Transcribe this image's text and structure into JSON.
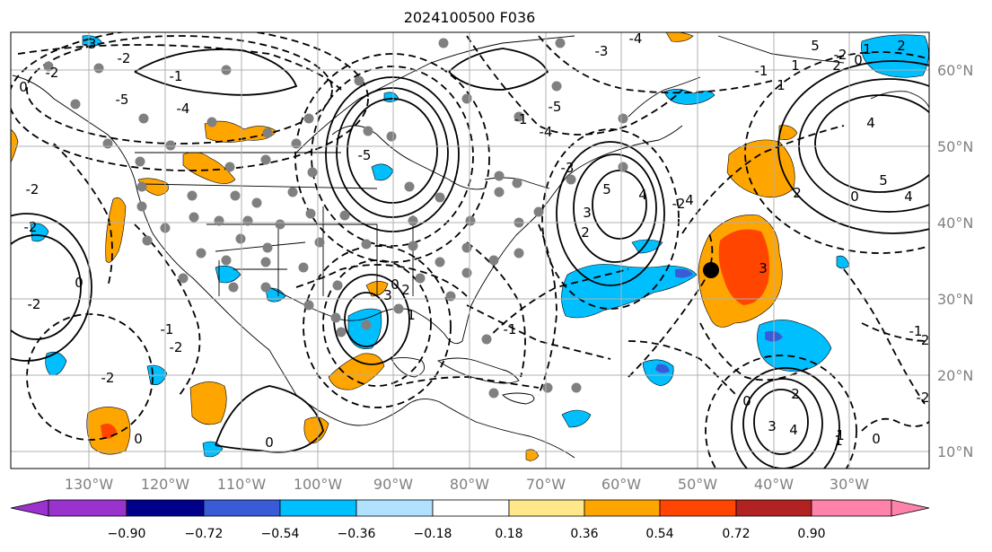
{
  "title": "2024100500 F036",
  "map": {
    "longitude_labels": [
      "130°W",
      "120°W",
      "110°W",
      "100°W",
      "90°W",
      "80°W",
      "70°W",
      "60°W",
      "50°W",
      "40°W",
      "30°W"
    ],
    "latitude_labels": [
      "60°N",
      "50°N",
      "40°N",
      "30°N",
      "20°N",
      "10°N"
    ],
    "gridline_color": "#b0b0b0",
    "label_color": "#808080",
    "contour_labels": [
      {
        "text": "-3"
      },
      {
        "text": "-2"
      },
      {
        "text": "-1"
      },
      {
        "text": "-2"
      },
      {
        "text": "-4"
      },
      {
        "text": "-5"
      },
      {
        "text": "-5"
      },
      {
        "text": "-4"
      },
      {
        "text": "-3"
      },
      {
        "text": "-2"
      },
      {
        "text": "0"
      },
      {
        "text": "-2"
      },
      {
        "text": "-2"
      },
      {
        "text": "0"
      },
      {
        "text": "-2"
      },
      {
        "text": "-1"
      },
      {
        "text": "-2"
      },
      {
        "text": "0"
      },
      {
        "text": "0"
      },
      {
        "text": "2"
      },
      {
        "text": "1"
      },
      {
        "text": "0"
      },
      {
        "text": "-1"
      },
      {
        "text": "4"
      },
      {
        "text": "3"
      },
      {
        "text": "2"
      },
      {
        "text": "5"
      },
      {
        "text": "4"
      },
      {
        "text": "5"
      },
      {
        "text": "4"
      },
      {
        "text": "3"
      },
      {
        "text": "3"
      },
      {
        "text": "1"
      },
      {
        "text": "-1"
      },
      {
        "text": "-5"
      },
      {
        "text": "-4"
      },
      {
        "text": "-3"
      },
      {
        "text": "-2"
      },
      {
        "text": "1"
      },
      {
        "text": "2"
      },
      {
        "text": "4"
      },
      {
        "text": "5"
      },
      {
        "text": "4"
      },
      {
        "text": "3"
      },
      {
        "text": "2"
      },
      {
        "text": "0"
      },
      {
        "text": "-1"
      },
      {
        "text": "-2"
      },
      {
        "text": "0"
      },
      {
        "text": "1"
      },
      {
        "text": "-2"
      },
      {
        "text": "-1"
      },
      {
        "text": "2"
      },
      {
        "text": "1"
      },
      {
        "text": "0"
      },
      {
        "text": "-2"
      },
      {
        "text": "0"
      },
      {
        "text": "1"
      },
      {
        "text": "2"
      }
    ],
    "marker": "storm-position-marker"
  },
  "colorbar": {
    "tick_labels": [
      "−0.90",
      "−0.72",
      "−0.54",
      "−0.36",
      "−0.18",
      "0.18",
      "0.36",
      "0.54",
      "0.72",
      "0.90"
    ],
    "colors": [
      "#9a32cd",
      "#00008b",
      "#3a5bd8",
      "#00bfff",
      "#b0e2ff",
      "#ffffff",
      "#ffe88a",
      "#ffa500",
      "#ff4500",
      "#b22222",
      "#ff82ab"
    ]
  },
  "palette": {
    "purple": "#9a32cd",
    "navy": "#00008b",
    "royal": "#3a5bd8",
    "sky": "#00bfff",
    "pale_blue": "#b0e2ff",
    "yellow": "#ffe88a",
    "orange": "#ffa500",
    "red_orange": "#ff4500",
    "firebrick": "#b22222",
    "pink": "#ff82ab"
  }
}
